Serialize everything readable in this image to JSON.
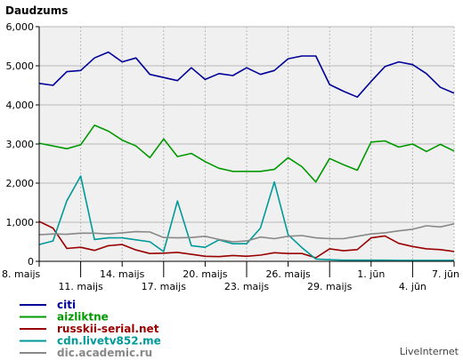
{
  "chart_data": {
    "type": "line",
    "title": "Daudzums",
    "credit": "LiveInternet",
    "ylim": [
      0,
      6000
    ],
    "yticks": [
      {
        "value": 0,
        "label": "0"
      },
      {
        "value": 1000,
        "label": "1,000"
      },
      {
        "value": 2000,
        "label": "2,000"
      },
      {
        "value": 3000,
        "label": "3,000"
      },
      {
        "value": 4000,
        "label": "4,000"
      },
      {
        "value": 5000,
        "label": "5,000"
      },
      {
        "value": 6000,
        "label": "6,000"
      }
    ],
    "xticks_row1": [
      {
        "index": 0,
        "label": "8. maijs"
      },
      {
        "index": 6,
        "label": "14. maijs"
      },
      {
        "index": 12,
        "label": "20. maijs"
      },
      {
        "index": 18,
        "label": "26. maijs"
      },
      {
        "index": 24,
        "label": "1. jūn"
      },
      {
        "index": 30,
        "label": "7. jūn"
      }
    ],
    "xticks_row2": [
      {
        "index": 3,
        "label": "11. maijs"
      },
      {
        "index": 9,
        "label": "17. maijs"
      },
      {
        "index": 15,
        "label": "23. maijs"
      },
      {
        "index": 21,
        "label": "29. maijs"
      },
      {
        "index": 27,
        "label": "4. jūn"
      }
    ],
    "grid": true,
    "legend_position": "bottom-left",
    "series": [
      {
        "name": "citi",
        "color": "#000099",
        "values": [
          4550,
          4500,
          4850,
          4880,
          5200,
          5350,
          5100,
          5200,
          4780,
          4700,
          4620,
          4950,
          4650,
          4800,
          4750,
          4950,
          4780,
          4880,
          5180,
          5250,
          5250,
          4520,
          4350,
          4200,
          4600,
          4980,
          5100,
          5030,
          4800,
          4450,
          4300
        ]
      },
      {
        "name": "aizliktne",
        "color": "#009900",
        "values": [
          3020,
          2950,
          2880,
          2980,
          3480,
          3330,
          3100,
          2950,
          2650,
          3130,
          2680,
          2760,
          2550,
          2380,
          2300,
          2300,
          2300,
          2350,
          2650,
          2420,
          2030,
          2630,
          2470,
          2330,
          3050,
          3080,
          2920,
          3000,
          2810,
          2990,
          2820
        ]
      },
      {
        "name": "russkii-serial.net",
        "color": "#990000",
        "values": [
          1020,
          850,
          330,
          360,
          280,
          400,
          430,
          290,
          200,
          210,
          230,
          180,
          130,
          120,
          150,
          130,
          160,
          220,
          200,
          200,
          90,
          320,
          270,
          300,
          600,
          650,
          460,
          380,
          320,
          300,
          250
        ]
      },
      {
        "name": "cdn.livetv852.me",
        "color": "#009999",
        "values": [
          430,
          520,
          1550,
          2180,
          560,
          600,
          600,
          550,
          500,
          250,
          1540,
          400,
          360,
          550,
          450,
          450,
          850,
          2030,
          680,
          350,
          60,
          40,
          30,
          30,
          30,
          30,
          25,
          25,
          25,
          25,
          25
        ]
      },
      {
        "name": "dic.academic.ru",
        "color": "#888888",
        "values": [
          680,
          700,
          690,
          720,
          720,
          700,
          730,
          760,
          750,
          610,
          600,
          610,
          640,
          560,
          500,
          520,
          620,
          580,
          640,
          660,
          600,
          580,
          580,
          640,
          700,
          730,
          780,
          820,
          910,
          880,
          960
        ]
      }
    ]
  }
}
